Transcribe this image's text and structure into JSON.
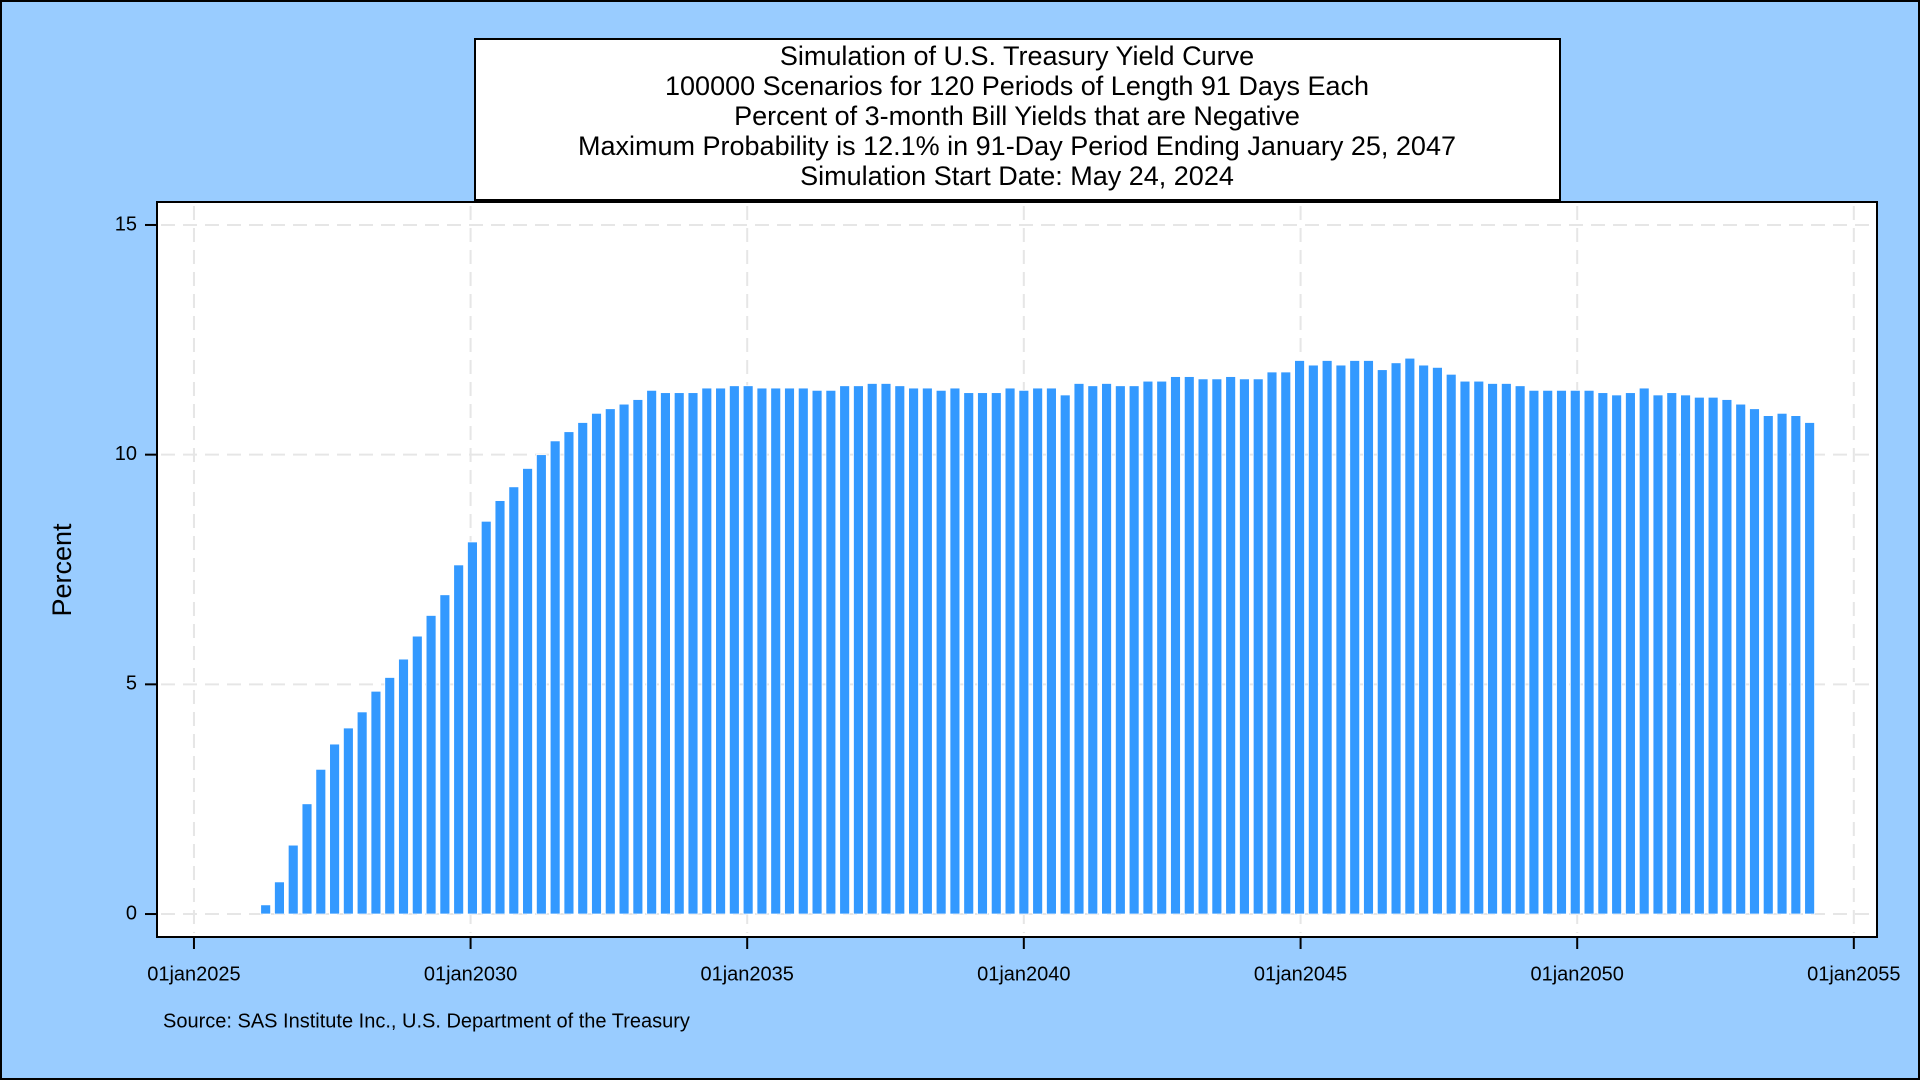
{
  "chart_data": {
    "type": "bar",
    "title": [
      "Simulation of U.S. Treasury Yield Curve",
      "100000 Scenarios for 120 Periods of Length 91 Days Each",
      "Percent of 3-month Bill Yields that are Negative",
      "Maximum Probability is 12.1% in 91-Day Period Ending January 25, 2047",
      "Simulation Start Date: May 24, 2024"
    ],
    "y_label": "Percent",
    "source": "Source: SAS Institute Inc., U.S. Department of the Treasury",
    "color": "#3399ff",
    "grid": true,
    "x": [
      "2024-08-23",
      "2024-11-22",
      "2025-02-21",
      "2025-05-23",
      "2025-08-22",
      "2025-11-21",
      "2026-02-20",
      "2026-05-22",
      "2026-08-21",
      "2026-11-20",
      "2027-02-19",
      "2027-05-21",
      "2027-08-20",
      "2027-11-19",
      "2028-02-18",
      "2028-05-19",
      "2028-08-18",
      "2028-11-17",
      "2029-02-16",
      "2029-05-18",
      "2029-08-17",
      "2029-11-16",
      "2030-02-15",
      "2030-05-17",
      "2030-08-16",
      "2030-11-15",
      "2031-02-14",
      "2031-05-16",
      "2031-08-15",
      "2031-11-14",
      "2032-02-13",
      "2032-05-14",
      "2032-08-13",
      "2032-11-12",
      "2033-02-11",
      "2033-05-13",
      "2033-08-12",
      "2033-11-11",
      "2034-02-10",
      "2034-05-12",
      "2034-08-11",
      "2034-11-10",
      "2035-02-09",
      "2035-05-11",
      "2035-08-10",
      "2035-11-09",
      "2036-02-08",
      "2036-05-09",
      "2036-08-08",
      "2036-11-07",
      "2037-02-06",
      "2037-05-08",
      "2037-08-07",
      "2037-11-06",
      "2038-02-05",
      "2038-05-07",
      "2038-08-06",
      "2038-11-05",
      "2039-02-04",
      "2039-05-06",
      "2039-08-05",
      "2039-11-04",
      "2040-02-03",
      "2040-05-04",
      "2040-08-03",
      "2040-11-02",
      "2041-02-01",
      "2041-05-03",
      "2041-08-02",
      "2041-11-01",
      "2042-01-31",
      "2042-05-02",
      "2042-08-01",
      "2042-10-31",
      "2043-01-30",
      "2043-05-01",
      "2043-07-31",
      "2043-10-30",
      "2044-01-29",
      "2044-04-29",
      "2044-07-29",
      "2044-10-28",
      "2045-01-27",
      "2045-04-28",
      "2045-07-28",
      "2045-10-27",
      "2046-01-26",
      "2046-04-27",
      "2046-07-27",
      "2046-10-26",
      "2047-01-25",
      "2047-04-26",
      "2047-07-26",
      "2047-10-25",
      "2048-01-24",
      "2048-04-24",
      "2048-07-24",
      "2048-10-23",
      "2049-01-22",
      "2049-04-23",
      "2049-07-23",
      "2049-10-22",
      "2050-01-21",
      "2050-04-22",
      "2050-07-22",
      "2050-10-21",
      "2051-01-20",
      "2051-04-21",
      "2051-07-21",
      "2051-10-20",
      "2052-01-19",
      "2052-04-19",
      "2052-07-19",
      "2052-10-18",
      "2053-01-17",
      "2053-04-18",
      "2053-07-18",
      "2053-10-17",
      "2054-01-16",
      "2054-04-17"
    ],
    "values": [
      0,
      0,
      0,
      0,
      0,
      0,
      0,
      0.2,
      0.7,
      1.5,
      2.4,
      3.15,
      3.7,
      4.05,
      4.4,
      4.85,
      5.15,
      5.55,
      6.05,
      6.5,
      6.95,
      7.6,
      8.1,
      8.55,
      9.0,
      9.3,
      9.7,
      10.0,
      10.3,
      10.5,
      10.7,
      10.9,
      11.0,
      11.1,
      11.2,
      11.4,
      11.35,
      11.35,
      11.35,
      11.45,
      11.45,
      11.5,
      11.5,
      11.45,
      11.45,
      11.45,
      11.45,
      11.4,
      11.4,
      11.5,
      11.5,
      11.55,
      11.55,
      11.5,
      11.45,
      11.45,
      11.4,
      11.45,
      11.35,
      11.35,
      11.35,
      11.45,
      11.4,
      11.45,
      11.45,
      11.3,
      11.55,
      11.5,
      11.55,
      11.5,
      11.5,
      11.6,
      11.6,
      11.7,
      11.7,
      11.65,
      11.65,
      11.7,
      11.65,
      11.65,
      11.8,
      11.8,
      12.05,
      11.95,
      12.05,
      11.95,
      12.05,
      12.05,
      11.85,
      12.0,
      12.1,
      11.95,
      11.9,
      11.75,
      11.6,
      11.6,
      11.55,
      11.55,
      11.5,
      11.4,
      11.4,
      11.4,
      11.4,
      11.4,
      11.35,
      11.3,
      11.35,
      11.45,
      11.3,
      11.35,
      11.3,
      11.25,
      11.25,
      11.2,
      11.1,
      11.0,
      10.85,
      10.9,
      10.85,
      10.7
    ],
    "xlim": [
      "2024-05-02",
      "2055-06-03"
    ],
    "xticks": [
      {
        "value": "2025-01-01",
        "label": "01jan2025"
      },
      {
        "value": "2030-01-01",
        "label": "01jan2030"
      },
      {
        "value": "2035-01-01",
        "label": "01jan2035"
      },
      {
        "value": "2040-01-01",
        "label": "01jan2040"
      },
      {
        "value": "2045-01-01",
        "label": "01jan2045"
      },
      {
        "value": "2050-01-01",
        "label": "01jan2050"
      },
      {
        "value": "2055-01-01",
        "label": "01jan2055"
      }
    ],
    "ylim": [
      -0.5,
      15.5
    ],
    "yticks": [
      0,
      5,
      10,
      15
    ]
  }
}
